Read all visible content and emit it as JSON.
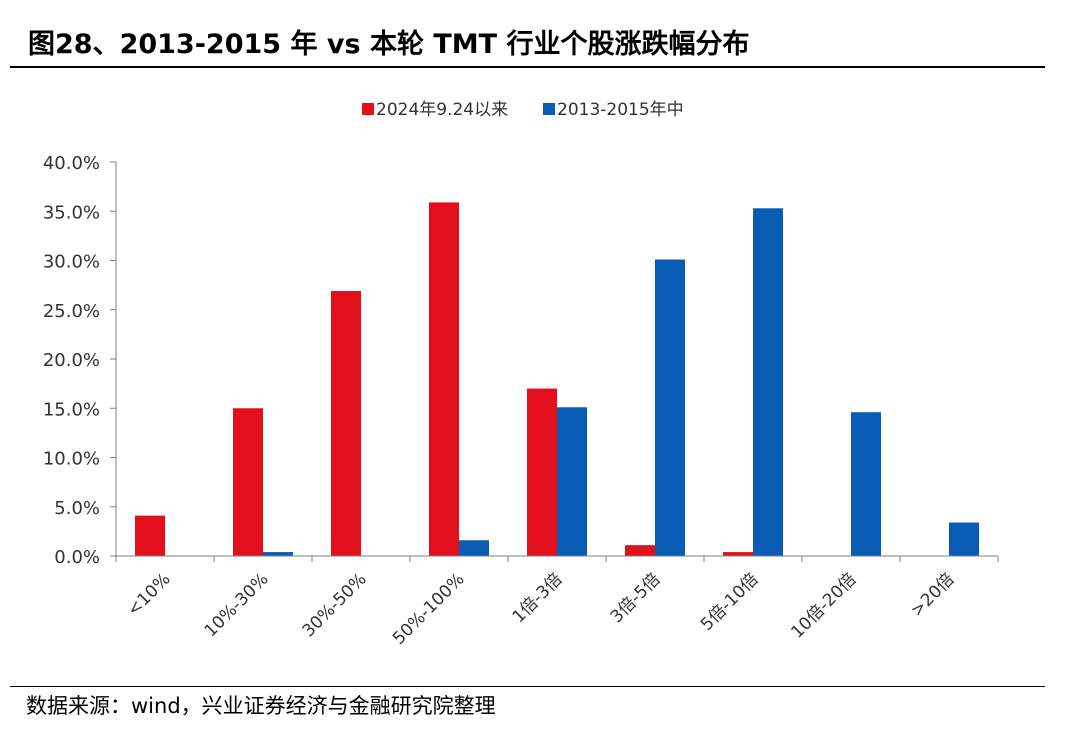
{
  "header": {
    "title": "图28、2013-2015 年 vs 本轮 TMT 行业个股涨跌幅分布"
  },
  "footer": {
    "source": "数据来源：wind，兴业证券经济与金融研究院整理"
  },
  "chart_data": {
    "type": "bar",
    "title": "",
    "xlabel": "",
    "ylabel": "",
    "ylim": [
      0,
      40
    ],
    "y_ticks": [
      "0.0%",
      "5.0%",
      "10.0%",
      "15.0%",
      "20.0%",
      "25.0%",
      "30.0%",
      "35.0%",
      "40.0%"
    ],
    "legend_position": "top-center",
    "categories": [
      "<10%",
      "10%-30%",
      "30%-50%",
      "50%-100%",
      "1倍-3倍",
      "3倍-5倍",
      "5倍-10倍",
      "10倍-20倍",
      ">20倍"
    ],
    "series": [
      {
        "name": "2024年9.24以来",
        "color": "#E3101B",
        "values": [
          4.1,
          15.0,
          26.9,
          35.9,
          17.0,
          1.1,
          0.4,
          0.0,
          0.0
        ]
      },
      {
        "name": "2013-2015年中",
        "color": "#0A5DB5",
        "values": [
          0.0,
          0.4,
          0.0,
          1.6,
          15.1,
          30.1,
          35.3,
          14.6,
          3.4
        ]
      }
    ]
  }
}
